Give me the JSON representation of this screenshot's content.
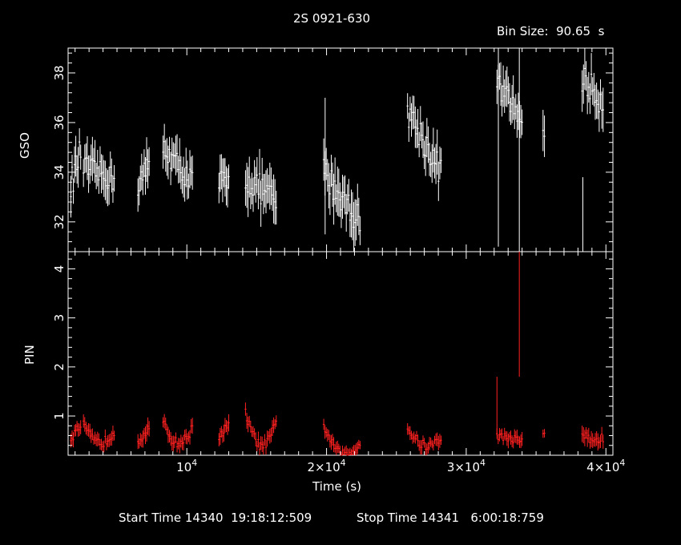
{
  "chart_data": {
    "type": "scatter",
    "title": "2S 0921-630",
    "bin_size_label": "Bin Size:  90.65  s",
    "xlabel": "Time (s)",
    "xlim": [
      1500,
      40500
    ],
    "x_tick_labels": [
      "10^4",
      "2×10^4",
      "3×10^4",
      "4×10^4"
    ],
    "x_tick_values": [
      10000,
      20000,
      30000,
      40000
    ],
    "start_time_label": "Start Time 14340  19:18:12:509",
    "stop_time_label": "Stop Time 14341   6:00:18:759",
    "panels": [
      {
        "name": "GSO",
        "ylabel": "GSO",
        "ylim": [
          30.8,
          39
        ],
        "yticks": [
          32,
          34,
          36,
          38
        ],
        "color": "#ffffff",
        "segments": [
          {
            "t": [
              1700,
              2400
            ],
            "start": 33.5,
            "end": 34.8,
            "noise": 0.6,
            "err": 0.7
          },
          {
            "t": [
              2600,
              4800
            ],
            "start": 34.2,
            "end": 33.7,
            "noise": 0.5,
            "err": 0.7
          },
          {
            "t": [
              6500,
              7300
            ],
            "start": 33.5,
            "end": 34.2,
            "noise": 0.6,
            "err": 0.7
          },
          {
            "t": [
              8300,
              10400
            ],
            "start": 35.0,
            "end": 33.6,
            "noise": 0.5,
            "err": 0.7
          },
          {
            "t": [
              12300,
              13000
            ],
            "start": 33.6,
            "end": 33.4,
            "noise": 0.6,
            "err": 0.7
          },
          {
            "t": [
              14200,
              16400
            ],
            "start": 33.8,
            "end": 32.8,
            "noise": 0.6,
            "err": 0.8
          },
          {
            "t": [
              19800,
              22400
            ],
            "start": 34.0,
            "end": 32.0,
            "noise": 0.6,
            "err": 0.8
          },
          {
            "t": [
              25800,
              28200
            ],
            "start": 36.5,
            "end": 34.0,
            "noise": 0.6,
            "err": 0.7
          },
          {
            "t": [
              32200,
              34000
            ],
            "start": 37.6,
            "end": 36.1,
            "noise": 0.5,
            "err": 0.7
          },
          {
            "t": [
              35500,
              35600
            ],
            "start": 35.5,
            "end": 35.6,
            "noise": 0.2,
            "err": 0.8
          },
          {
            "t": [
              38300,
              39800
            ],
            "start": 37.8,
            "end": 36.8,
            "noise": 0.6,
            "err": 0.7
          }
        ],
        "spikes": [
          {
            "t": 19900,
            "lo": 31.5,
            "hi": 37.0
          },
          {
            "t": 32300,
            "lo": 31.0,
            "hi": 39.0
          },
          {
            "t": 33800,
            "lo": 30.8,
            "hi": 39.0
          },
          {
            "t": 38350,
            "lo": 30.8,
            "hi": 33.8
          }
        ]
      },
      {
        "name": "PIN",
        "ylabel": "PIN",
        "ylim": [
          0.2,
          4.35
        ],
        "yticks": [
          1,
          2,
          3,
          4
        ],
        "color": "#ff2020",
        "segments": [
          {
            "t": [
              1700,
              2400
            ],
            "start": 0.55,
            "end": 0.8,
            "noise": 0.1,
            "err": 0.15
          },
          {
            "t": [
              2600,
              4800
            ],
            "start": 0.8,
            "end": 0.7,
            "noise": 0.1,
            "err": 0.13,
            "dip": 0.3
          },
          {
            "t": [
              6500,
              7300
            ],
            "start": 0.5,
            "end": 0.75,
            "noise": 0.1,
            "err": 0.14
          },
          {
            "t": [
              8300,
              10400
            ],
            "start": 0.85,
            "end": 0.75,
            "noise": 0.1,
            "err": 0.13,
            "dip": 0.35
          },
          {
            "t": [
              12300,
              13000
            ],
            "start": 0.6,
            "end": 0.8,
            "noise": 0.1,
            "err": 0.14
          },
          {
            "t": [
              14200,
              16400
            ],
            "start": 1.05,
            "end": 0.85,
            "noise": 0.1,
            "err": 0.13,
            "dip": 0.55
          },
          {
            "t": [
              19800,
              22400
            ],
            "start": 0.8,
            "end": 0.45,
            "noise": 0.08,
            "err": 0.12,
            "dip": 0.4
          },
          {
            "t": [
              25800,
              28200
            ],
            "start": 0.75,
            "end": 0.55,
            "noise": 0.1,
            "err": 0.12,
            "dip": 0.25
          },
          {
            "t": [
              32200,
              34000
            ],
            "start": 0.6,
            "end": 0.5,
            "noise": 0.08,
            "err": 0.12
          },
          {
            "t": [
              35500,
              35600
            ],
            "start": 0.65,
            "end": 0.65,
            "noise": 0.05,
            "err": 0.12
          },
          {
            "t": [
              38300,
              39800
            ],
            "start": 0.65,
            "end": 0.55,
            "noise": 0.1,
            "err": 0.14,
            "dip": 0.1
          }
        ],
        "spikes": [
          {
            "t": 32200,
            "lo": 0.6,
            "hi": 1.8
          },
          {
            "t": 33800,
            "lo": 1.8,
            "hi": 4.35
          }
        ]
      }
    ]
  }
}
